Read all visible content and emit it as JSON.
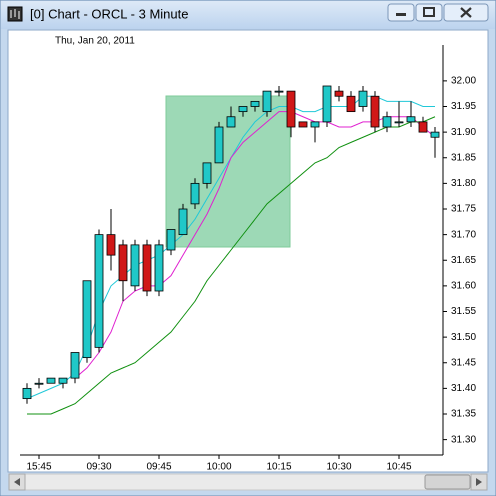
{
  "window": {
    "title": "[0]  Chart - ORCL - 3 Minute"
  },
  "chart_data": {
    "type": "candlestick",
    "subtitle": "Thu, Jan 20, 2011",
    "categories": [
      null,
      "15:45",
      null,
      null,
      null,
      null,
      "09:30",
      null,
      null,
      null,
      null,
      "09:45",
      null,
      null,
      null,
      null,
      "10:00",
      null,
      null,
      null,
      null,
      "10:15",
      null,
      null,
      null,
      null,
      "10:30",
      null,
      null,
      null,
      null,
      "10:45",
      null,
      null,
      null
    ],
    "open": [
      31.38,
      31.41,
      31.41,
      31.41,
      31.42,
      31.46,
      31.48,
      31.7,
      31.68,
      31.6,
      31.68,
      31.59,
      31.67,
      31.7,
      31.76,
      31.8,
      31.84,
      31.91,
      31.94,
      31.95,
      31.94,
      31.98,
      31.98,
      31.92,
      31.91,
      31.92,
      31.98,
      31.97,
      31.95,
      31.97,
      31.91,
      31.92,
      31.92,
      31.92,
      31.89
    ],
    "high": [
      31.41,
      31.42,
      31.42,
      31.42,
      31.47,
      31.61,
      31.71,
      31.75,
      31.69,
      31.69,
      31.69,
      31.69,
      31.71,
      31.76,
      31.81,
      31.84,
      31.92,
      31.95,
      31.95,
      31.96,
      31.98,
      31.99,
      31.98,
      31.92,
      31.92,
      31.99,
      31.99,
      31.98,
      31.99,
      31.98,
      31.94,
      31.96,
      31.96,
      31.93,
      31.91
    ],
    "low": [
      31.37,
      31.4,
      31.41,
      31.4,
      31.41,
      31.45,
      31.47,
      31.63,
      31.57,
      31.59,
      31.58,
      31.58,
      31.66,
      31.7,
      31.75,
      31.79,
      31.84,
      31.91,
      31.93,
      31.94,
      31.93,
      31.97,
      31.89,
      31.91,
      31.88,
      31.91,
      31.96,
      31.94,
      31.94,
      31.9,
      31.9,
      31.91,
      31.91,
      31.9,
      31.85
    ],
    "close": [
      31.4,
      31.41,
      31.42,
      31.42,
      31.47,
      31.61,
      31.7,
      31.66,
      31.61,
      31.68,
      31.59,
      31.68,
      31.71,
      31.75,
      31.8,
      31.84,
      31.91,
      31.93,
      31.95,
      31.96,
      31.98,
      31.98,
      31.91,
      31.91,
      31.92,
      31.99,
      31.97,
      31.94,
      31.98,
      31.91,
      31.93,
      31.92,
      31.93,
      31.9,
      31.9
    ],
    "up_color": "#20c8c8",
    "down_color": "#d01818",
    "lines": [
      {
        "color": "#20c8d8",
        "values": [
          31.38,
          31.39,
          31.4,
          31.41,
          31.43,
          31.48,
          31.55,
          31.6,
          31.62,
          31.64,
          31.65,
          31.66,
          31.68,
          31.7,
          31.73,
          31.77,
          31.81,
          31.85,
          31.89,
          31.92,
          31.94,
          31.95,
          31.95,
          31.94,
          31.94,
          31.95,
          31.95,
          31.95,
          31.97,
          31.97,
          31.96,
          31.96,
          31.96,
          31.95,
          31.95
        ]
      },
      {
        "color": "#e020d0",
        "values": [
          null,
          null,
          null,
          null,
          31.42,
          31.44,
          31.47,
          31.51,
          31.57,
          31.59,
          31.6,
          31.6,
          31.62,
          31.66,
          31.7,
          31.74,
          31.79,
          31.85,
          31.88,
          31.9,
          31.92,
          31.94,
          31.94,
          31.93,
          31.92,
          31.92,
          31.91,
          31.91,
          31.92,
          31.92,
          31.93,
          31.93,
          31.93,
          31.91,
          31.89
        ]
      },
      {
        "color": "#109010",
        "values": [
          31.35,
          31.35,
          31.35,
          31.36,
          31.37,
          31.39,
          31.41,
          31.43,
          31.44,
          31.45,
          31.47,
          31.49,
          31.51,
          31.54,
          31.57,
          31.61,
          31.64,
          31.67,
          31.7,
          31.73,
          31.76,
          31.78,
          31.8,
          31.82,
          31.84,
          31.85,
          31.87,
          31.88,
          31.89,
          31.9,
          31.91,
          31.91,
          31.92,
          31.92,
          31.93
        ]
      }
    ],
    "ylim": [
      31.27,
      32.07
    ],
    "yticks": [
      {
        "value": 31.3,
        "label": "31.30"
      },
      31.35,
      {
        "value": 31.4,
        "label": "31.40"
      },
      31.45,
      {
        "value": 31.5,
        "label": "31.50"
      },
      31.55,
      {
        "value": 31.6,
        "label": "31.60"
      },
      31.65,
      {
        "value": 31.7,
        "label": "31.70"
      },
      31.75,
      {
        "value": 31.8,
        "label": "31.80"
      },
      31.85,
      {
        "value": 31.9,
        "label": "31.90"
      },
      31.95,
      {
        "value": 32,
        "label": "32.00"
      }
    ]
  }
}
